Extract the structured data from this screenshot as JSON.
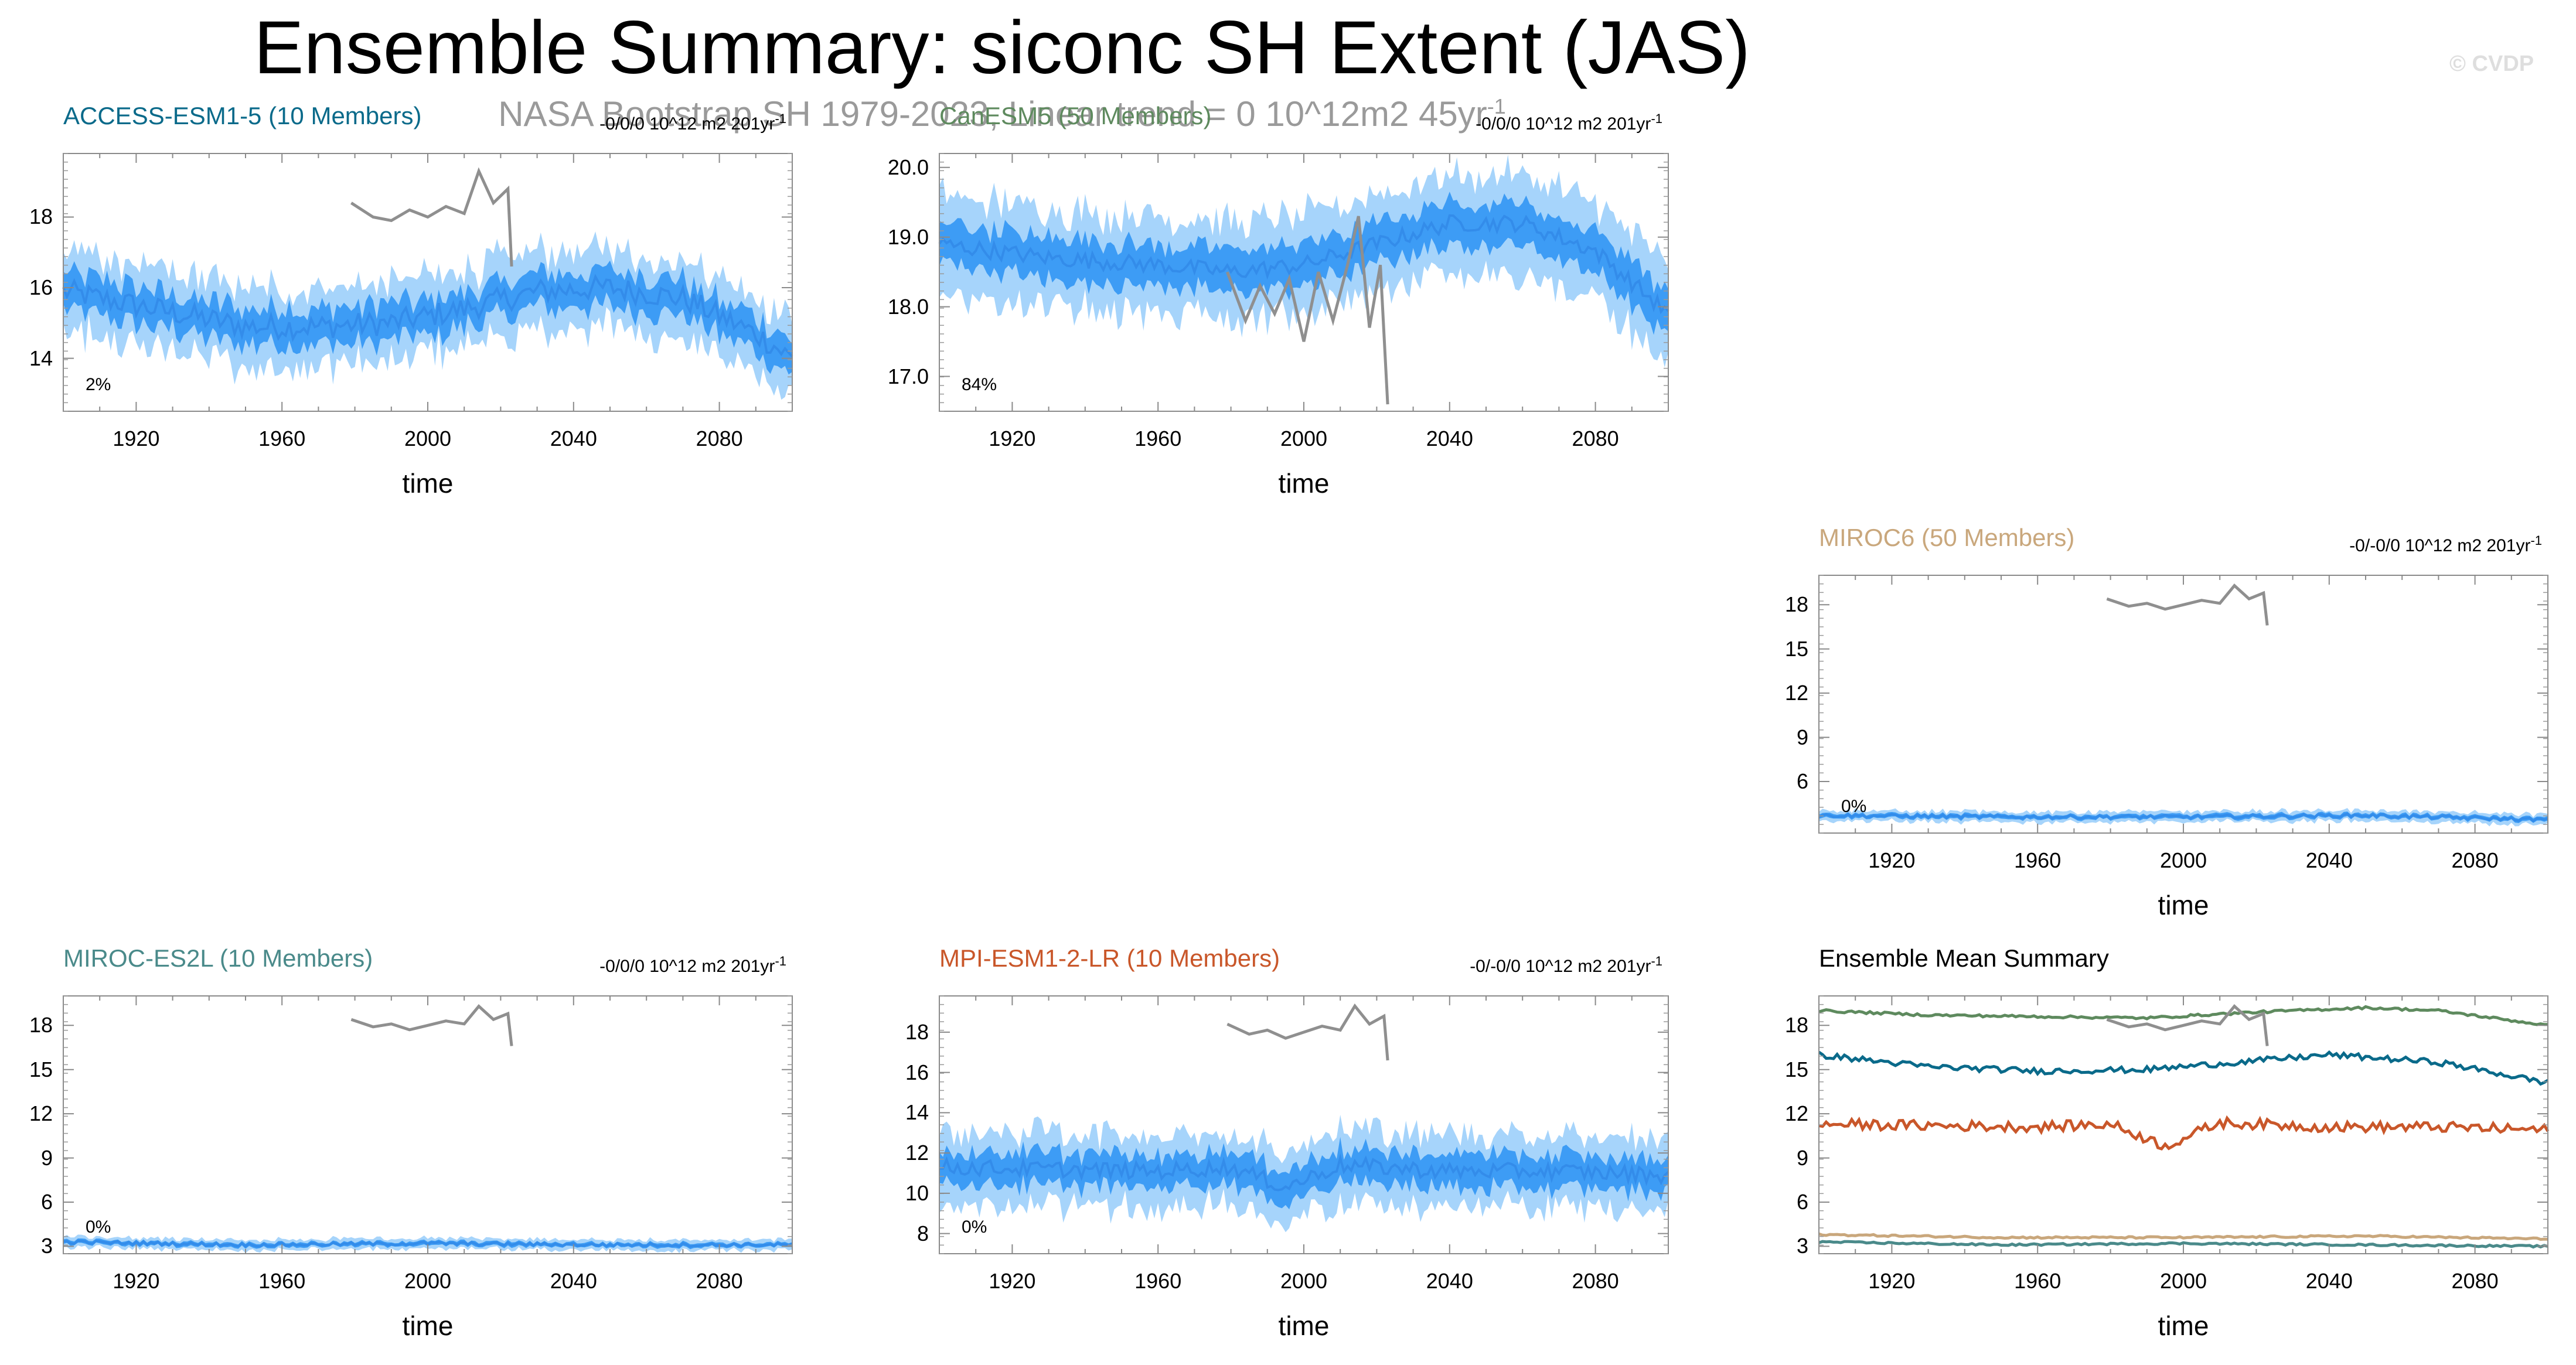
{
  "title": "Ensemble Summary: siconc SH Extent (JAS)",
  "subtitle_base": "NASA Bootstrap SH 1979-2023, Linear trend = 0 10^12m2 45yr",
  "subtitle_sup": "-1",
  "watermark": "© CVDP",
  "colors": {
    "obs": "#8f8f8f",
    "member_range": "#a6d4fb",
    "iqr": "#3d9cf5",
    "ens_mean": "#2f86e6"
  },
  "chart_data": [
    {
      "type": "line",
      "panel": "access",
      "title": "ACCESS-ESM1-5 (10 Members)",
      "title_color": "#0a6a8a",
      "trend_text": "-0/0/0 10^12 m2 201yr",
      "trend_sup": "-1",
      "percent_label": "2%",
      "xlabel": "time",
      "ylabel": "",
      "xlim": [
        1900,
        2100
      ],
      "ylim": [
        12.5,
        19.8
      ],
      "yticks": [
        "14",
        "16",
        "18"
      ],
      "ytick_values": [
        14,
        16,
        18
      ],
      "xticks": [
        "1920",
        "1960",
        "2000",
        "2040",
        "2080"
      ],
      "xtick_values": [
        1920,
        1960,
        2000,
        2040,
        2080
      ],
      "ens_mean": {
        "x": [
          1900,
          1930,
          1950,
          1970,
          1990,
          2010,
          2030,
          2050,
          2070,
          2090,
          2100
        ],
        "y": [
          15.9,
          15.3,
          14.9,
          14.9,
          15.0,
          15.4,
          15.9,
          16.0,
          15.7,
          14.7,
          14.0
        ]
      },
      "spread_iqr": 0.5,
      "spread_range": 1.1,
      "noise": 0.35,
      "obs": {
        "x": [
          1979,
          1985,
          1990,
          1995,
          2000,
          2005,
          2010,
          2014,
          2018,
          2022,
          2023
        ],
        "y": [
          18.4,
          18.0,
          17.9,
          18.2,
          18.0,
          18.3,
          18.1,
          19.3,
          18.4,
          18.8,
          16.6
        ]
      }
    },
    {
      "type": "line",
      "panel": "canesm",
      "title": "CanESM5 (50 Members)",
      "title_color": "#5e8a5e",
      "trend_text": "-0/0/0 10^12 m2 201yr",
      "trend_sup": "-1",
      "percent_label": "84%",
      "xlabel": "time",
      "ylabel": "",
      "xlim": [
        1900,
        2100
      ],
      "ylim": [
        16.5,
        20.2
      ],
      "yticks": [
        "17.0",
        "18.0",
        "19.0",
        "20.0"
      ],
      "ytick_values": [
        17,
        18,
        19,
        20
      ],
      "xticks": [
        "1920",
        "1960",
        "2000",
        "2040",
        "2080"
      ],
      "xtick_values": [
        1920,
        1960,
        2000,
        2040,
        2080
      ],
      "ens_mean": {
        "x": [
          1900,
          1930,
          1960,
          1980,
          2000,
          2020,
          2040,
          2060,
          2080,
          2100
        ],
        "y": [
          18.9,
          18.7,
          18.6,
          18.5,
          18.6,
          18.9,
          19.2,
          19.2,
          18.8,
          17.9
        ]
      },
      "spread_iqr": 0.3,
      "spread_range": 0.7,
      "noise": 0.12,
      "obs": {
        "x": [
          1979,
          1984,
          1988,
          1992,
          1996,
          2000,
          2004,
          2008,
          2012,
          2015,
          2018,
          2021,
          2023
        ],
        "y": [
          18.5,
          17.8,
          18.3,
          17.9,
          18.4,
          17.5,
          18.5,
          17.8,
          18.6,
          19.3,
          17.7,
          18.6,
          16.6
        ]
      }
    },
    {
      "type": "line",
      "panel": "miroc6",
      "title": "MIROC6 (50 Members)",
      "title_color": "#c9a77c",
      "trend_text": "-0/-0/0 10^12 m2 201yr",
      "trend_sup": "-1",
      "percent_label": "0%",
      "xlabel": "time",
      "ylabel": "",
      "xlim": [
        1900,
        2100
      ],
      "ylim": [
        2.5,
        20
      ],
      "yticks": [
        "6",
        "9",
        "12",
        "15",
        "18"
      ],
      "ytick_values": [
        6,
        9,
        12,
        15,
        18
      ],
      "xticks": [
        "1920",
        "1960",
        "2000",
        "2040",
        "2080"
      ],
      "xtick_values": [
        1920,
        1960,
        2000,
        2040,
        2080
      ],
      "ens_mean": {
        "x": [
          1900,
          1950,
          2000,
          2050,
          2100
        ],
        "y": [
          3.7,
          3.6,
          3.6,
          3.7,
          3.4
        ]
      },
      "spread_iqr": 0.15,
      "spread_range": 0.35,
      "noise": 0.12,
      "obs": {
        "x": [
          1979,
          1985,
          1990,
          1995,
          2000,
          2005,
          2010,
          2014,
          2018,
          2022,
          2023
        ],
        "y": [
          18.4,
          17.9,
          18.1,
          17.7,
          18.0,
          18.3,
          18.1,
          19.3,
          18.4,
          18.8,
          16.6
        ]
      }
    },
    {
      "type": "line",
      "panel": "mirocl",
      "title": "MIROC-ES2L (10 Members)",
      "title_color": "#4a8a8a",
      "trend_text": "-0/0/0 10^12 m2 201yr",
      "trend_sup": "-1",
      "percent_label": "0%",
      "xlabel": "time",
      "ylabel": "",
      "xlim": [
        1900,
        2100
      ],
      "ylim": [
        2.5,
        20
      ],
      "yticks": [
        "3",
        "6",
        "9",
        "12",
        "15",
        "18"
      ],
      "ytick_values": [
        3,
        6,
        9,
        12,
        15,
        18
      ],
      "xticks": [
        "1920",
        "1960",
        "2000",
        "2040",
        "2080"
      ],
      "xtick_values": [
        1920,
        1960,
        2000,
        2040,
        2080
      ],
      "ens_mean": {
        "x": [
          1900,
          1950,
          2000,
          2050,
          2100
        ],
        "y": [
          3.3,
          3.1,
          3.2,
          3.1,
          3.1
        ]
      },
      "spread_iqr": 0.15,
      "spread_range": 0.35,
      "noise": 0.12,
      "obs": {
        "x": [
          1979,
          1985,
          1990,
          1995,
          2000,
          2005,
          2010,
          2014,
          2018,
          2022,
          2023
        ],
        "y": [
          18.4,
          17.9,
          18.1,
          17.7,
          18.0,
          18.3,
          18.1,
          19.3,
          18.4,
          18.8,
          16.6
        ]
      }
    },
    {
      "type": "line",
      "panel": "mpi",
      "title": "MPI-ESM1-2-LR (10 Members)",
      "title_color": "#c9572a",
      "trend_text": "-0/-0/0 10^12 m2 201yr",
      "trend_sup": "-1",
      "percent_label": "0%",
      "xlabel": "time",
      "ylabel": "",
      "xlim": [
        1900,
        2100
      ],
      "ylim": [
        7,
        19.8
      ],
      "yticks": [
        "8",
        "10",
        "12",
        "14",
        "16",
        "18"
      ],
      "ytick_values": [
        8,
        10,
        12,
        14,
        16,
        18
      ],
      "xticks": [
        "1920",
        "1960",
        "2000",
        "2040",
        "2080"
      ],
      "xtick_values": [
        1920,
        1960,
        2000,
        2040,
        2080
      ],
      "ens_mean": {
        "x": [
          1900,
          1930,
          1960,
          1980,
          1995,
          2010,
          2040,
          2070,
          2100
        ],
        "y": [
          11.3,
          11.2,
          11.1,
          11.3,
          10.3,
          11.4,
          11.1,
          11.1,
          10.9
        ]
      },
      "spread_iqr": 0.8,
      "spread_range": 1.8,
      "noise": 0.4,
      "obs": {
        "x": [
          1979,
          1985,
          1990,
          1995,
          2000,
          2005,
          2010,
          2014,
          2018,
          2022,
          2023
        ],
        "y": [
          18.4,
          17.9,
          18.1,
          17.7,
          18.0,
          18.3,
          18.1,
          19.3,
          18.4,
          18.8,
          16.6
        ]
      }
    },
    {
      "type": "line",
      "panel": "summary",
      "title": "Ensemble Mean Summary",
      "title_color": "#000000",
      "xlabel": "time",
      "ylabel": "",
      "xlim": [
        1900,
        2100
      ],
      "ylim": [
        2.5,
        20
      ],
      "yticks": [
        "3",
        "6",
        "9",
        "12",
        "15",
        "18"
      ],
      "ytick_values": [
        3,
        6,
        9,
        12,
        15,
        18
      ],
      "xticks": [
        "1920",
        "1960",
        "2000",
        "2040",
        "2080"
      ],
      "xtick_values": [
        1920,
        1960,
        2000,
        2040,
        2080
      ],
      "series": [
        {
          "color": "#5e8a5e",
          "x": [
            1900,
            1930,
            1960,
            1990,
            2020,
            2050,
            2070,
            2100
          ],
          "y": [
            19.0,
            18.7,
            18.6,
            18.5,
            18.9,
            19.2,
            19.0,
            18.0
          ],
          "noise": 0.08
        },
        {
          "color": "#0a6a8a",
          "x": [
            1900,
            1930,
            1960,
            1990,
            2020,
            2040,
            2070,
            2100
          ],
          "y": [
            16.0,
            15.2,
            14.9,
            15.0,
            15.6,
            16.0,
            15.5,
            14.1
          ],
          "noise": 0.2
        },
        {
          "color": "#c9572a",
          "x": [
            1900,
            1930,
            1960,
            1980,
            1995,
            2010,
            2040,
            2070,
            2100
          ],
          "y": [
            11.3,
            11.2,
            11.1,
            11.3,
            9.8,
            11.4,
            11.1,
            11.1,
            10.9
          ],
          "noise": 0.35
        },
        {
          "color": "#c9a77c",
          "x": [
            1900,
            1950,
            2000,
            2050,
            2100
          ],
          "y": [
            3.8,
            3.6,
            3.6,
            3.7,
            3.5
          ],
          "noise": 0.06
        },
        {
          "color": "#4a8a8a",
          "x": [
            1900,
            1950,
            2000,
            2050,
            2100
          ],
          "y": [
            3.3,
            3.1,
            3.2,
            3.1,
            3.0
          ],
          "noise": 0.06
        }
      ],
      "obs": {
        "x": [
          1979,
          1985,
          1990,
          1995,
          2000,
          2005,
          2010,
          2014,
          2018,
          2022,
          2023
        ],
        "y": [
          18.4,
          17.9,
          18.1,
          17.7,
          18.0,
          18.3,
          18.1,
          19.3,
          18.4,
          18.8,
          16.6
        ]
      }
    }
  ]
}
